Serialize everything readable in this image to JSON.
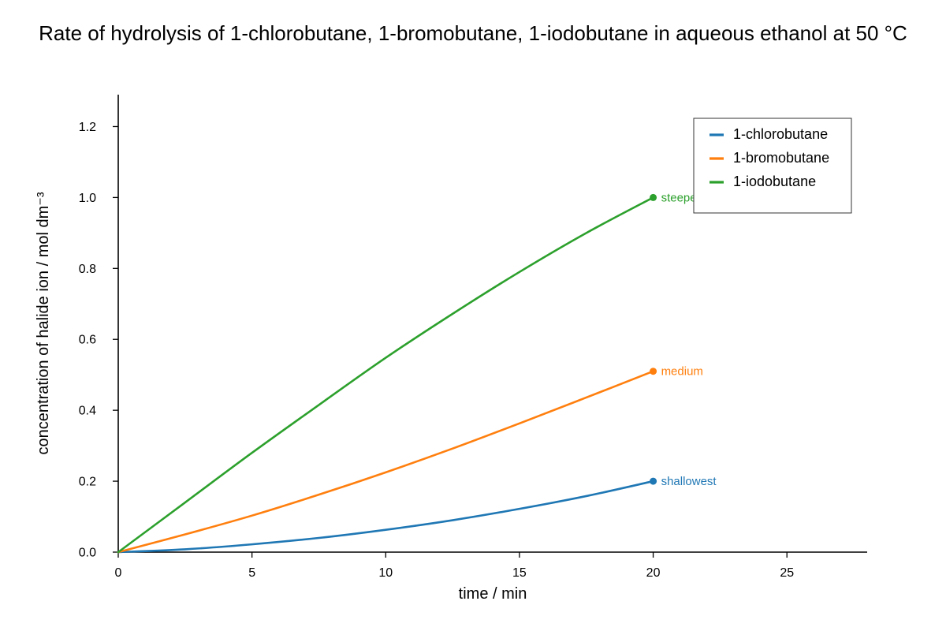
{
  "chart_data": {
    "type": "line",
    "title": "Rate of hydrolysis of 1-chlorobutane, 1-bromobutane, 1-iodobutane in aqueous ethanol at 50 °C",
    "xlabel": "time / min",
    "ylabel": "concentration of halide ion / mol dm⁻³",
    "xlim": [
      0,
      28
    ],
    "ylim": [
      0,
      1.28
    ],
    "xticks": [
      0,
      5,
      10,
      15,
      20,
      25
    ],
    "yticks": [
      0.0,
      0.2,
      0.4,
      0.6,
      0.8,
      1.0,
      1.2
    ],
    "xtick_labels": [
      "0",
      "5",
      "10",
      "15",
      "20",
      "25"
    ],
    "ytick_labels": [
      "0.0",
      "0.2",
      "0.4",
      "0.6",
      "0.8",
      "1.0",
      "1.2"
    ],
    "grid": false,
    "legend": "top-right",
    "x": [
      0,
      2.5,
      5,
      7.5,
      10,
      12.5,
      15,
      17.5,
      20
    ],
    "series": [
      {
        "name": "1-chlorobutane",
        "color": "#1f77b4",
        "values": [
          0,
          0.008,
          0.022,
          0.04,
          0.063,
          0.09,
          0.122,
          0.158,
          0.2
        ],
        "end_label": "shallowest"
      },
      {
        "name": "1-bromobutane",
        "color": "#ff7f0e",
        "values": [
          0,
          0.05,
          0.103,
          0.162,
          0.225,
          0.292,
          0.363,
          0.436,
          0.51
        ],
        "end_label": "medium"
      },
      {
        "name": "1-iodobutane",
        "color": "#2ca02c",
        "values": [
          0,
          0.14,
          0.28,
          0.415,
          0.548,
          0.672,
          0.79,
          0.9,
          1.0
        ],
        "end_label": "steepest"
      }
    ]
  }
}
